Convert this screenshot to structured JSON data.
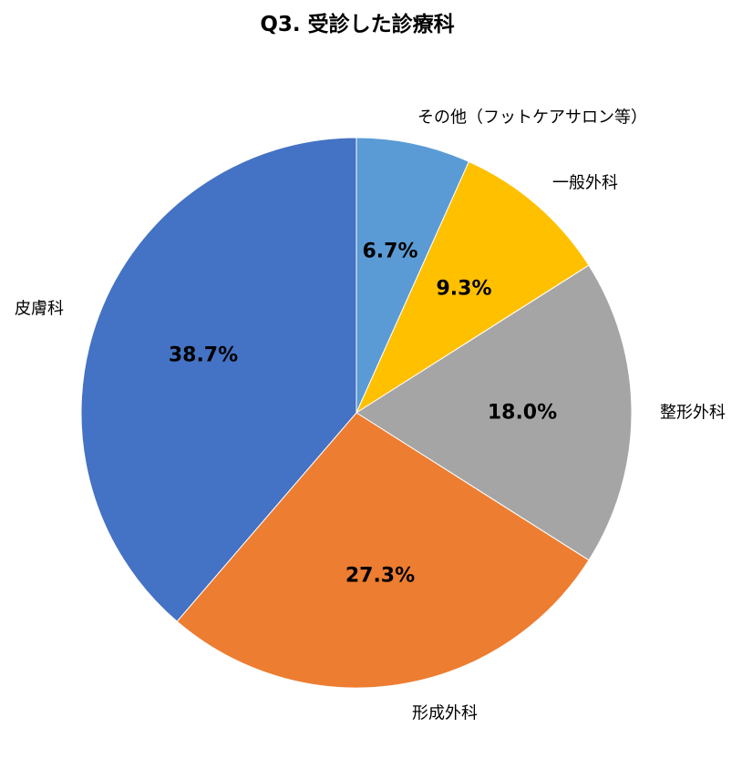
{
  "chart_data": {
    "type": "pie",
    "title": "Q3. 受診した診療科",
    "slices": [
      {
        "label": "その他（フットケアサロン等）",
        "value": 6.7,
        "display": "6.7%",
        "color": "#5B9BD5"
      },
      {
        "label": "一般外科",
        "value": 9.3,
        "display": "9.3%",
        "color": "#FFC000"
      },
      {
        "label": "整形外科",
        "value": 18.0,
        "display": "18.0%",
        "color": "#A5A5A5"
      },
      {
        "label": "形成外科",
        "value": 27.3,
        "display": "27.3%",
        "color": "#ED7D31"
      },
      {
        "label": "皮膚科",
        "value": 38.7,
        "display": "38.7%",
        "color": "#4472C4"
      }
    ],
    "start": "12 o'clock",
    "direction": "clockwise"
  }
}
